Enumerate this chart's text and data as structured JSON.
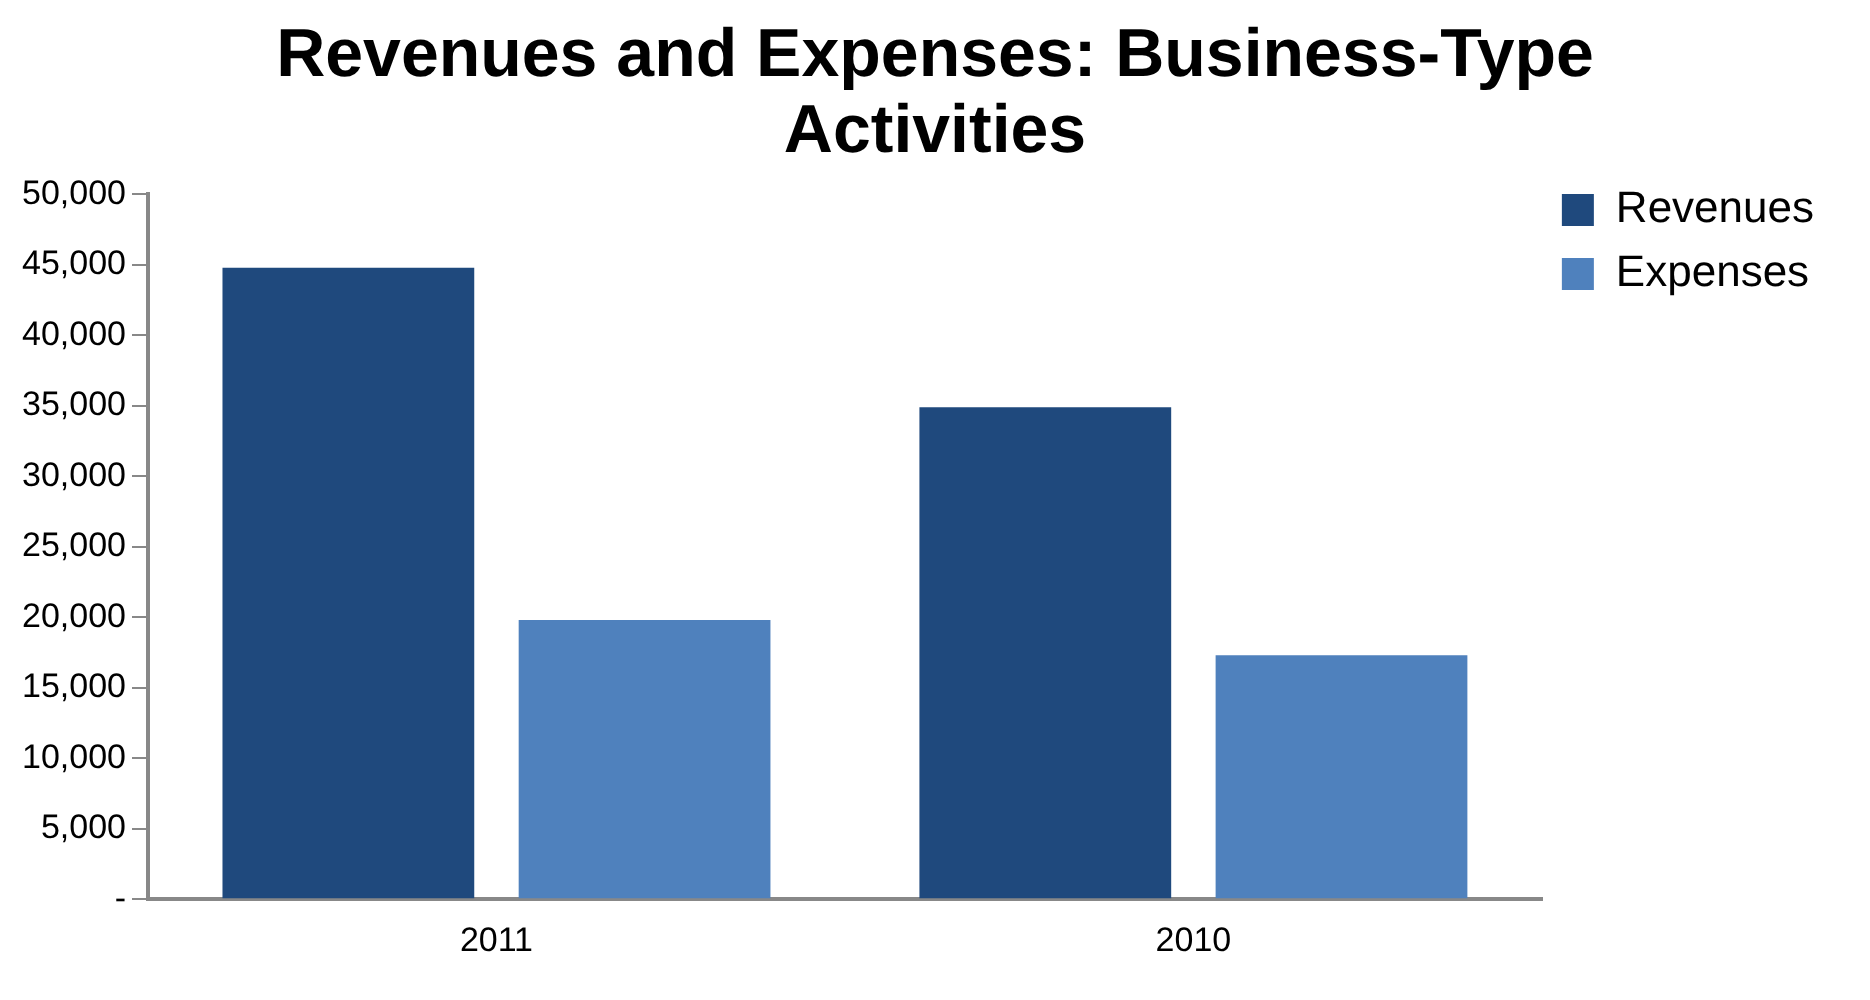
{
  "chart_data": {
    "type": "bar",
    "title": "Revenues and Expenses:  Business-Type Activities",
    "categories": [
      "2011",
      "2010"
    ],
    "series": [
      {
        "name": "Revenues",
        "color": "#1f497d",
        "values": [
          44800,
          34900
        ]
      },
      {
        "name": "Expenses",
        "color": "#4f81bd",
        "values": [
          19800,
          17300
        ]
      }
    ],
    "ylim": [
      0,
      50000
    ],
    "yticks": [
      {
        "value": 0,
        "label": "-"
      },
      {
        "value": 5000,
        "label": "5,000"
      },
      {
        "value": 10000,
        "label": "10,000"
      },
      {
        "value": 15000,
        "label": "15,000"
      },
      {
        "value": 20000,
        "label": "20,000"
      },
      {
        "value": 25000,
        "label": "25,000"
      },
      {
        "value": 30000,
        "label": "30,000"
      },
      {
        "value": 35000,
        "label": "35,000"
      },
      {
        "value": 40000,
        "label": "40,000"
      },
      {
        "value": 45000,
        "label": "45,000"
      },
      {
        "value": 50000,
        "label": "50,000"
      }
    ],
    "grid": false,
    "legend": "top right"
  }
}
